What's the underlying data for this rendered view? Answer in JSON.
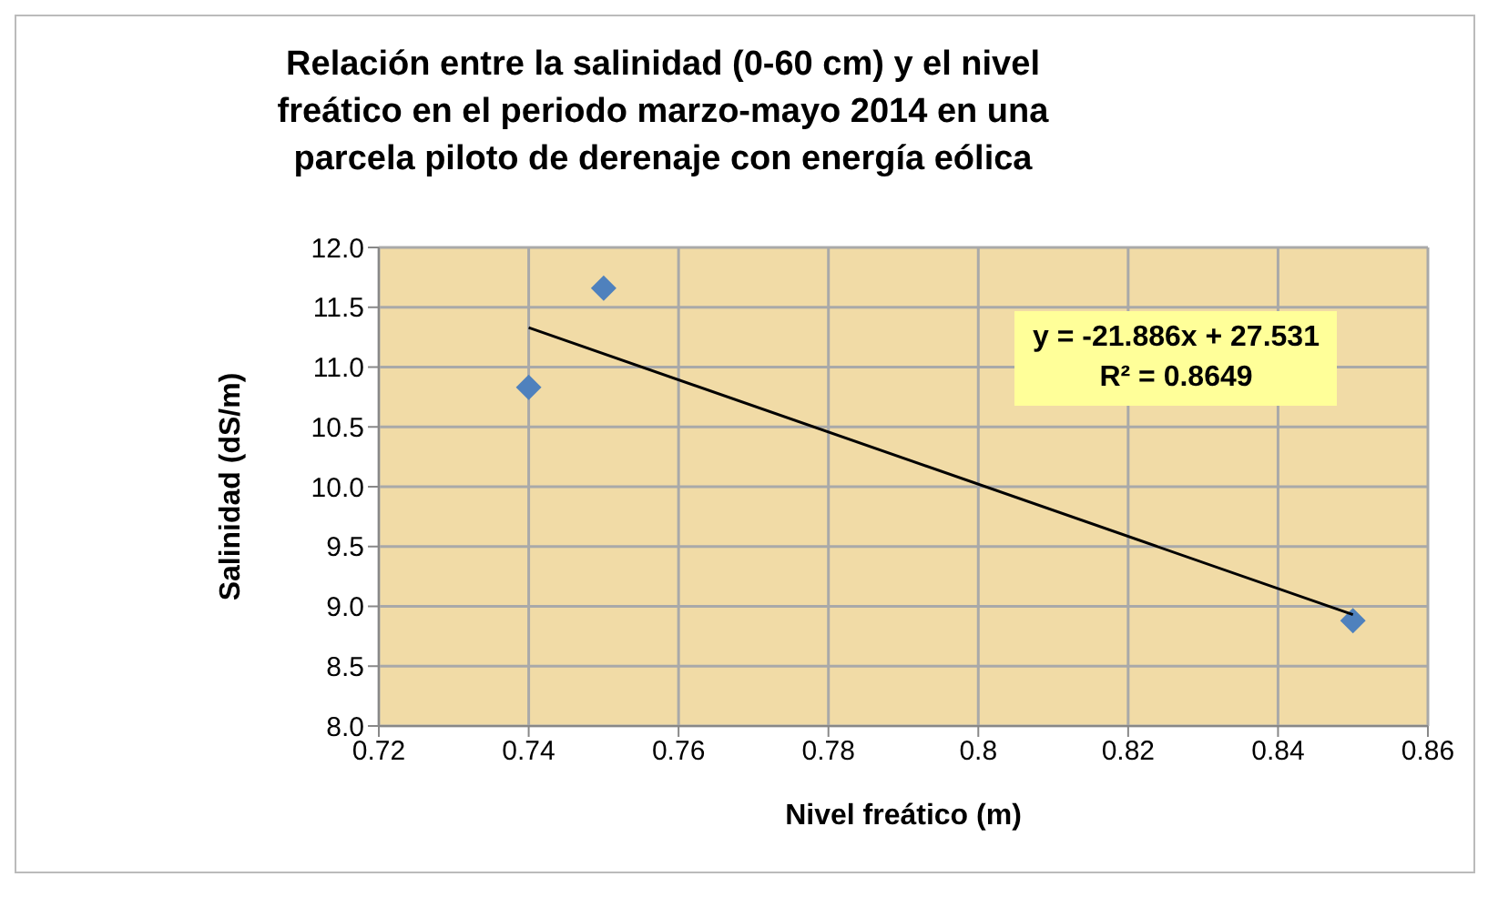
{
  "chart_data": {
    "type": "scatter",
    "title": "Relación entre la salinidad (0-60 cm) y el nivel freático en el periodo marzo-mayo 2014 en una parcela piloto de derenaje con energía eólica",
    "xlabel": "Nivel freático (m)",
    "ylabel": "Salinidad (dS/m)",
    "series": [
      {
        "type": "scatter",
        "color": "#4f81bd",
        "x": [
          0.74,
          0.75,
          0.85
        ],
        "values": [
          10.83,
          11.66,
          8.88
        ]
      },
      {
        "type": "line",
        "color": "#000000",
        "marker": "none",
        "x": [
          0.74,
          0.85
        ],
        "values": [
          11.33,
          8.93
        ]
      }
    ],
    "marker": "diamond",
    "grid": true,
    "xlim": [
      0.72,
      0.86
    ],
    "xticks": [
      0.72,
      0.74,
      0.76,
      0.78,
      0.8,
      0.82,
      0.84,
      0.86
    ],
    "ylim": [
      8,
      12
    ],
    "yticks": [
      {
        "value": 8,
        "label": "8.0"
      },
      {
        "value": 8.5,
        "label": "8.5"
      },
      {
        "value": 9,
        "label": "9.0"
      },
      {
        "value": 9.5,
        "label": "9.5"
      },
      {
        "value": 10,
        "label": "10.0"
      },
      {
        "value": 10.5,
        "label": "10.5"
      },
      {
        "value": 11,
        "label": "11.0"
      },
      {
        "value": 11.5,
        "label": "11.5"
      },
      {
        "value": 12,
        "label": "12.0"
      }
    ],
    "annotations": [
      "y = -21.886x + 27.531",
      "R² = 0.8649"
    ]
  }
}
